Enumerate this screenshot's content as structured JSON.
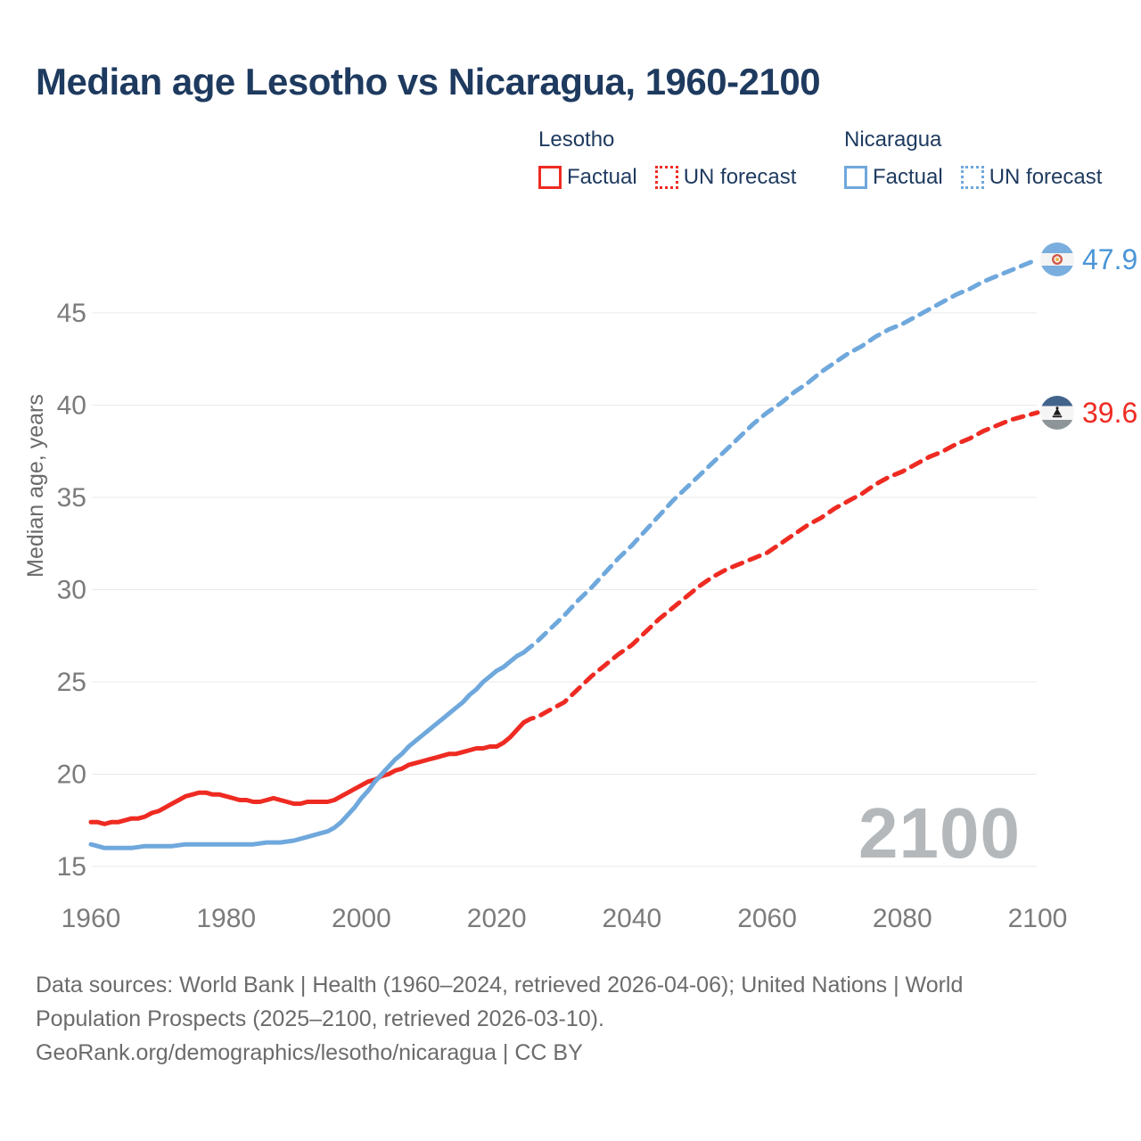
{
  "title": "Median age Lesotho vs Nicaragua, 1960-2100",
  "watermark": "2100",
  "legend": {
    "groups": [
      {
        "country": "Lesotho",
        "color": "#ee2b22",
        "items": [
          {
            "label": "Factual",
            "style": "solid"
          },
          {
            "label": "UN forecast",
            "style": "dotted"
          }
        ]
      },
      {
        "country": "Nicaragua",
        "color": "#6fa8dc",
        "items": [
          {
            "label": "Factual",
            "style": "solid"
          },
          {
            "label": "UN forecast",
            "style": "dotted"
          }
        ]
      }
    ]
  },
  "end_labels": [
    {
      "country": "Nicaragua",
      "value": "47.9",
      "color": "#4a95d8",
      "flag": "nicaragua"
    },
    {
      "country": "Lesotho",
      "value": "39.6",
      "color": "#ee2b22",
      "flag": "lesotho"
    }
  ],
  "footer": {
    "lines": [
      "Data sources: World Bank | Health (1960–2024, retrieved 2026-04-06); United Nations | World",
      "Population Prospects (2025–2100, retrieved 2026-03-10).",
      "GeoRank.org/demographics/lesotho/nicaragua | CC BY"
    ]
  },
  "chart_data": {
    "type": "line",
    "title": "Median age Lesotho vs Nicaragua, 1960-2100",
    "xlabel": "",
    "ylabel": "Median age, years",
    "x_ticks": [
      1960,
      1980,
      2000,
      2020,
      2040,
      2060,
      2080,
      2100
    ],
    "y_ticks": [
      15,
      20,
      25,
      30,
      35,
      40,
      45
    ],
    "xlim": [
      1960,
      2100
    ],
    "ylim": [
      15,
      48
    ],
    "grid": "horizontal-only",
    "legend_position": "top-right",
    "gridline_color": "#e8e8e8",
    "axis_label_color": "#7b7b7b",
    "watermark_color": "#b4b8bb",
    "series": [
      {
        "name": "Lesotho Factual",
        "country": "Lesotho",
        "color": "#ee2b22",
        "line_style": "solid",
        "points": [
          [
            1960,
            17.4
          ],
          [
            1961,
            17.4
          ],
          [
            1962,
            17.3
          ],
          [
            1963,
            17.4
          ],
          [
            1964,
            17.4
          ],
          [
            1965,
            17.5
          ],
          [
            1966,
            17.6
          ],
          [
            1967,
            17.6
          ],
          [
            1968,
            17.7
          ],
          [
            1969,
            17.9
          ],
          [
            1970,
            18.0
          ],
          [
            1971,
            18.2
          ],
          [
            1972,
            18.4
          ],
          [
            1973,
            18.6
          ],
          [
            1974,
            18.8
          ],
          [
            1975,
            18.9
          ],
          [
            1976,
            19.0
          ],
          [
            1977,
            19.0
          ],
          [
            1978,
            18.9
          ],
          [
            1979,
            18.9
          ],
          [
            1980,
            18.8
          ],
          [
            1981,
            18.7
          ],
          [
            1982,
            18.6
          ],
          [
            1983,
            18.6
          ],
          [
            1984,
            18.5
          ],
          [
            1985,
            18.5
          ],
          [
            1986,
            18.6
          ],
          [
            1987,
            18.7
          ],
          [
            1988,
            18.6
          ],
          [
            1989,
            18.5
          ],
          [
            1990,
            18.4
          ],
          [
            1991,
            18.4
          ],
          [
            1992,
            18.5
          ],
          [
            1993,
            18.5
          ],
          [
            1994,
            18.5
          ],
          [
            1995,
            18.5
          ],
          [
            1996,
            18.6
          ],
          [
            1997,
            18.8
          ],
          [
            1998,
            19.0
          ],
          [
            1999,
            19.2
          ],
          [
            2000,
            19.4
          ],
          [
            2001,
            19.6
          ],
          [
            2002,
            19.7
          ],
          [
            2003,
            19.9
          ],
          [
            2004,
            20.0
          ],
          [
            2005,
            20.2
          ],
          [
            2006,
            20.3
          ],
          [
            2007,
            20.5
          ],
          [
            2008,
            20.6
          ],
          [
            2009,
            20.7
          ],
          [
            2010,
            20.8
          ],
          [
            2011,
            20.9
          ],
          [
            2012,
            21.0
          ],
          [
            2013,
            21.1
          ],
          [
            2014,
            21.1
          ],
          [
            2015,
            21.2
          ],
          [
            2016,
            21.3
          ],
          [
            2017,
            21.4
          ],
          [
            2018,
            21.4
          ],
          [
            2019,
            21.5
          ],
          [
            2020,
            21.5
          ],
          [
            2021,
            21.7
          ],
          [
            2022,
            22.0
          ],
          [
            2023,
            22.4
          ],
          [
            2024,
            22.8
          ]
        ],
        "end_label": null
      },
      {
        "name": "Lesotho UN forecast",
        "country": "Lesotho",
        "color": "#ee2b22",
        "line_style": "dashed",
        "points": [
          [
            2024,
            22.8
          ],
          [
            2025,
            23.0
          ],
          [
            2026,
            23.1
          ],
          [
            2028,
            23.5
          ],
          [
            2030,
            23.9
          ],
          [
            2032,
            24.6
          ],
          [
            2034,
            25.3
          ],
          [
            2036,
            25.9
          ],
          [
            2038,
            26.5
          ],
          [
            2040,
            27.0
          ],
          [
            2042,
            27.7
          ],
          [
            2044,
            28.4
          ],
          [
            2046,
            29.0
          ],
          [
            2048,
            29.6
          ],
          [
            2050,
            30.2
          ],
          [
            2052,
            30.7
          ],
          [
            2054,
            31.1
          ],
          [
            2056,
            31.4
          ],
          [
            2058,
            31.7
          ],
          [
            2060,
            32.0
          ],
          [
            2062,
            32.5
          ],
          [
            2064,
            33.0
          ],
          [
            2066,
            33.5
          ],
          [
            2068,
            33.9
          ],
          [
            2070,
            34.4
          ],
          [
            2072,
            34.8
          ],
          [
            2074,
            35.2
          ],
          [
            2076,
            35.7
          ],
          [
            2078,
            36.1
          ],
          [
            2080,
            36.4
          ],
          [
            2082,
            36.8
          ],
          [
            2084,
            37.2
          ],
          [
            2086,
            37.5
          ],
          [
            2088,
            37.9
          ],
          [
            2090,
            38.2
          ],
          [
            2092,
            38.6
          ],
          [
            2094,
            38.9
          ],
          [
            2096,
            39.2
          ],
          [
            2098,
            39.4
          ],
          [
            2100,
            39.6
          ]
        ],
        "end_label": "39.6"
      },
      {
        "name": "Nicaragua Factual",
        "country": "Nicaragua",
        "color": "#6fa8dc",
        "line_style": "solid",
        "points": [
          [
            1960,
            16.2
          ],
          [
            1961,
            16.1
          ],
          [
            1962,
            16.0
          ],
          [
            1963,
            16.0
          ],
          [
            1964,
            16.0
          ],
          [
            1965,
            16.0
          ],
          [
            1966,
            16.0
          ],
          [
            1968,
            16.1
          ],
          [
            1970,
            16.1
          ],
          [
            1972,
            16.1
          ],
          [
            1974,
            16.2
          ],
          [
            1976,
            16.2
          ],
          [
            1978,
            16.2
          ],
          [
            1980,
            16.2
          ],
          [
            1982,
            16.2
          ],
          [
            1984,
            16.2
          ],
          [
            1986,
            16.3
          ],
          [
            1988,
            16.3
          ],
          [
            1990,
            16.4
          ],
          [
            1992,
            16.6
          ],
          [
            1994,
            16.8
          ],
          [
            1995,
            16.9
          ],
          [
            1996,
            17.1
          ],
          [
            1997,
            17.4
          ],
          [
            1998,
            17.8
          ],
          [
            1999,
            18.2
          ],
          [
            2000,
            18.7
          ],
          [
            2001,
            19.1
          ],
          [
            2002,
            19.6
          ],
          [
            2003,
            20.0
          ],
          [
            2004,
            20.4
          ],
          [
            2005,
            20.8
          ],
          [
            2006,
            21.1
          ],
          [
            2007,
            21.5
          ],
          [
            2008,
            21.8
          ],
          [
            2009,
            22.1
          ],
          [
            2010,
            22.4
          ],
          [
            2011,
            22.7
          ],
          [
            2012,
            23.0
          ],
          [
            2013,
            23.3
          ],
          [
            2014,
            23.6
          ],
          [
            2015,
            23.9
          ],
          [
            2016,
            24.3
          ],
          [
            2017,
            24.6
          ],
          [
            2018,
            25.0
          ],
          [
            2019,
            25.3
          ],
          [
            2020,
            25.6
          ],
          [
            2021,
            25.8
          ],
          [
            2022,
            26.1
          ],
          [
            2023,
            26.4
          ],
          [
            2024,
            26.6
          ]
        ],
        "end_label": null
      },
      {
        "name": "Nicaragua UN forecast",
        "country": "Nicaragua",
        "color": "#6fa8dc",
        "line_style": "dashed",
        "points": [
          [
            2024,
            26.6
          ],
          [
            2025,
            26.9
          ],
          [
            2026,
            27.2
          ],
          [
            2028,
            27.9
          ],
          [
            2030,
            28.6
          ],
          [
            2032,
            29.4
          ],
          [
            2034,
            30.1
          ],
          [
            2036,
            30.9
          ],
          [
            2038,
            31.7
          ],
          [
            2040,
            32.4
          ],
          [
            2042,
            33.2
          ],
          [
            2044,
            34.0
          ],
          [
            2046,
            34.8
          ],
          [
            2048,
            35.5
          ],
          [
            2050,
            36.2
          ],
          [
            2052,
            36.9
          ],
          [
            2054,
            37.6
          ],
          [
            2056,
            38.3
          ],
          [
            2058,
            39.0
          ],
          [
            2060,
            39.6
          ],
          [
            2062,
            40.1
          ],
          [
            2064,
            40.7
          ],
          [
            2066,
            41.2
          ],
          [
            2068,
            41.8
          ],
          [
            2070,
            42.3
          ],
          [
            2072,
            42.8
          ],
          [
            2074,
            43.2
          ],
          [
            2076,
            43.7
          ],
          [
            2078,
            44.1
          ],
          [
            2080,
            44.4
          ],
          [
            2082,
            44.8
          ],
          [
            2084,
            45.2
          ],
          [
            2086,
            45.6
          ],
          [
            2088,
            46.0
          ],
          [
            2090,
            46.3
          ],
          [
            2092,
            46.7
          ],
          [
            2094,
            47.0
          ],
          [
            2096,
            47.3
          ],
          [
            2098,
            47.6
          ],
          [
            2100,
            47.9
          ]
        ],
        "end_label": "47.9"
      }
    ]
  }
}
